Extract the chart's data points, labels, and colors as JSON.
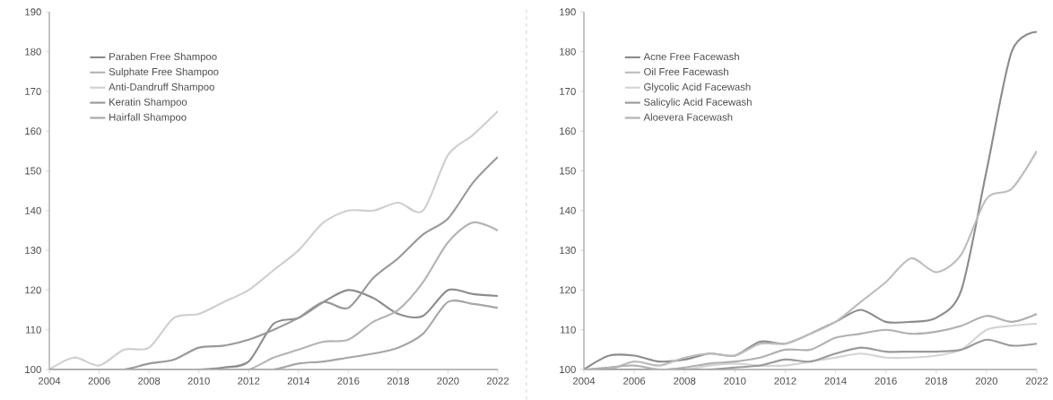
{
  "chart_data": [
    {
      "type": "line",
      "x": [
        2004,
        2005,
        2006,
        2007,
        2008,
        2009,
        2010,
        2011,
        2012,
        2013,
        2014,
        2015,
        2016,
        2017,
        2018,
        2019,
        2020,
        2021,
        2022
      ],
      "series": [
        {
          "name": "Paraben Free Shampoo",
          "color": "#8c8c8c",
          "values": [
            100,
            100,
            100,
            100,
            100,
            100,
            100,
            100.5,
            102,
            111.5,
            113,
            117,
            120,
            118,
            114,
            113.5,
            120,
            119,
            118.5
          ]
        },
        {
          "name": "Sulphate Free Shampoo",
          "color": "#b4b4b4",
          "values": [
            100,
            100,
            100,
            100,
            100,
            100,
            100,
            100,
            100,
            103,
            105,
            107,
            107.5,
            112,
            115,
            122,
            132,
            137,
            135
          ]
        },
        {
          "name": "Anti-Dandruff Shampoo",
          "color": "#cfcfcf",
          "values": [
            100,
            103,
            101,
            105,
            105.5,
            113,
            114,
            117,
            120,
            125,
            130,
            137,
            140,
            140,
            142,
            140,
            154,
            159,
            165
          ]
        },
        {
          "name": "Keratin Shampoo",
          "color": "#999999",
          "values": [
            100,
            100,
            100,
            100,
            101.5,
            102.5,
            105.5,
            106,
            107.5,
            110,
            113,
            117,
            115.5,
            123,
            128,
            134,
            138,
            147,
            153.5
          ]
        },
        {
          "name": "Hairfall Shampoo",
          "color": "#a6a6a6",
          "values": [
            100,
            100,
            100,
            100,
            100,
            100,
            100,
            100,
            100,
            100,
            101.5,
            102,
            103,
            104,
            105.5,
            109,
            117,
            116.5,
            115.5
          ]
        }
      ],
      "xlim": [
        2004,
        2022
      ],
      "ylim": [
        100,
        190
      ],
      "xticks": [
        2004,
        2006,
        2008,
        2010,
        2012,
        2014,
        2016,
        2018,
        2020,
        2022
      ],
      "yticks": [
        100,
        110,
        120,
        130,
        140,
        150,
        160,
        170,
        180,
        190
      ],
      "grid": false,
      "legend": "top left",
      "marker": "none",
      "line_style": "solid"
    },
    {
      "type": "line",
      "x": [
        2004,
        2005,
        2006,
        2007,
        2008,
        2009,
        2010,
        2011,
        2012,
        2013,
        2014,
        2015,
        2016,
        2017,
        2018,
        2019,
        2020,
        2021,
        2022
      ],
      "series": [
        {
          "name": "Acne Free Facewash",
          "color": "#8c8c8c",
          "values": [
            100,
            103.5,
            103.5,
            102,
            102.5,
            104,
            103.5,
            107,
            106.5,
            109,
            112,
            115,
            112,
            112,
            113,
            120,
            150,
            180,
            185
          ]
        },
        {
          "name": "Oil Free Facewash",
          "color": "#bdbdbd",
          "values": [
            100,
            100,
            102,
            101,
            103,
            104,
            103.5,
            106.5,
            106.5,
            109,
            112,
            117,
            122,
            128,
            124.5,
            129,
            143,
            145.5,
            155
          ]
        },
        {
          "name": "Glycolic Acid Facewash",
          "color": "#d4d4d4",
          "values": [
            100,
            100,
            100,
            100,
            100,
            101,
            101.5,
            101,
            101,
            102,
            103,
            104,
            103,
            103,
            103.5,
            105,
            110,
            111,
            111.5
          ]
        },
        {
          "name": "Salicylic Acid Facewash",
          "color": "#9a9a9a",
          "values": [
            100,
            100,
            100,
            100,
            100,
            100,
            100.5,
            101,
            102.5,
            102,
            104,
            105.5,
            104.5,
            104.5,
            104.5,
            105,
            107.5,
            106,
            106.5
          ]
        },
        {
          "name": "Aloevera Facewash",
          "color": "#b0b0b0",
          "values": [
            100,
            100.5,
            101,
            100,
            100.5,
            101.5,
            102,
            103,
            105,
            105,
            108,
            109,
            110,
            109,
            109.5,
            111,
            113.5,
            112,
            114
          ]
        }
      ],
      "xlim": [
        2004,
        2022
      ],
      "ylim": [
        100,
        190
      ],
      "xticks": [
        2004,
        2006,
        2008,
        2010,
        2012,
        2014,
        2016,
        2018,
        2020,
        2022
      ],
      "yticks": [
        100,
        110,
        120,
        130,
        140,
        150,
        160,
        170,
        180,
        190
      ],
      "grid": false,
      "legend": "top left",
      "marker": "none",
      "line_style": "solid"
    }
  ]
}
